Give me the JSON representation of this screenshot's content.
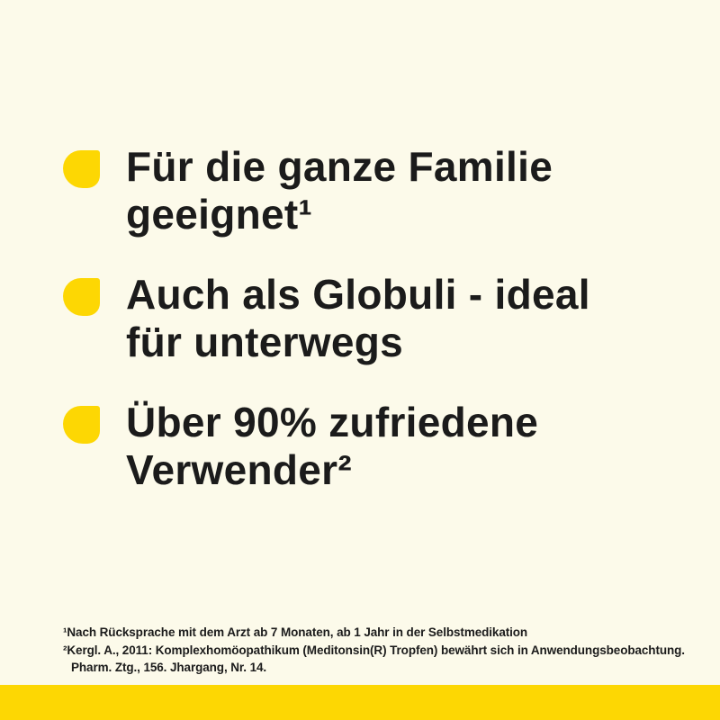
{
  "colors": {
    "background": "#FCFAEA",
    "accent_yellow": "#FDD703",
    "text": "#1B1B1B"
  },
  "benefits": [
    {
      "icon": "leaf-bullet-icon",
      "lines": [
        "Für die ganze Familie",
        "geeignet¹"
      ]
    },
    {
      "icon": "leaf-bullet-icon",
      "lines": [
        "Auch als Globuli - ideal",
        "für unterwegs"
      ]
    },
    {
      "icon": "leaf-bullet-icon",
      "lines": [
        "Über 90% zufriedene",
        "Verwender²"
      ]
    }
  ],
  "footnotes": [
    {
      "lines": [
        "¹Nach Rücksprache mit dem Arzt ab 7 Monaten, ab 1 Jahr in der Selbstmedikation"
      ]
    },
    {
      "lines": [
        "²Kergl. A., 2011: Komplexhomöopathikum (Meditonsin(R) Tropfen) bewährt sich in Anwendungsbeobachtung.",
        "Pharm. Ztg., 156. Jhargang, Nr. 14."
      ]
    }
  ]
}
